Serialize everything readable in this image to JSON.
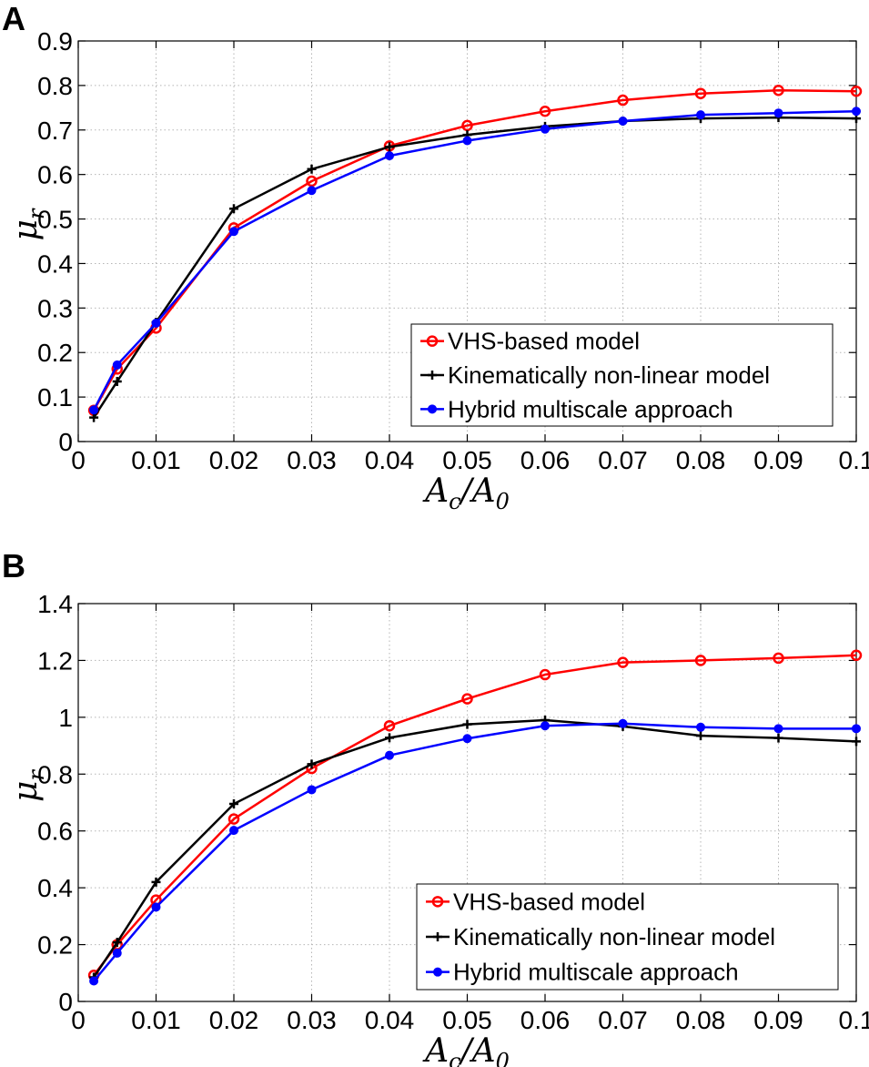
{
  "chart_data": [
    {
      "type": "line",
      "panel_label": "A",
      "x": [
        0.002,
        0.005,
        0.01,
        0.02,
        0.03,
        0.04,
        0.05,
        0.06,
        0.07,
        0.08,
        0.09,
        0.1
      ],
      "xlim": [
        0,
        0.1
      ],
      "ylim": [
        0,
        0.9
      ],
      "xticks": [
        "0",
        "0.01",
        "0.02",
        "0.03",
        "0.04",
        "0.05",
        "0.06",
        "0.07",
        "0.08",
        "0.09",
        "0.1"
      ],
      "yticks": [
        "0",
        "0.1",
        "0.2",
        "0.3",
        "0.4",
        "0.5",
        "0.6",
        "0.7",
        "0.8",
        "0.9"
      ],
      "xlabel": "A_c/A_0",
      "ylabel": "μ_r",
      "grid": true,
      "legend_position": "bottom-right",
      "series": [
        {
          "name": "VHS-based model",
          "color": "#ff0000",
          "marker": "circle",
          "values": [
            0.07,
            0.163,
            0.255,
            0.48,
            0.585,
            0.664,
            0.71,
            0.742,
            0.767,
            0.782,
            0.789,
            0.787
          ]
        },
        {
          "name": "Kinematically non-linear model",
          "color": "#000000",
          "marker": "plus",
          "values": [
            0.054,
            0.135,
            0.268,
            0.523,
            0.612,
            0.662,
            0.689,
            0.708,
            0.72,
            0.726,
            0.728,
            0.726
          ]
        },
        {
          "name": "Hybrid multiscale approach",
          "color": "#0000ff",
          "marker": "dot",
          "values": [
            0.071,
            0.172,
            0.266,
            0.472,
            0.564,
            0.642,
            0.676,
            0.702,
            0.72,
            0.734,
            0.738,
            0.742
          ]
        }
      ]
    },
    {
      "type": "line",
      "panel_label": "B",
      "x": [
        0.002,
        0.005,
        0.01,
        0.02,
        0.03,
        0.04,
        0.05,
        0.06,
        0.07,
        0.08,
        0.09,
        0.1
      ],
      "xlim": [
        0,
        0.1
      ],
      "ylim": [
        0,
        1.4
      ],
      "xticks": [
        "0",
        "0.01",
        "0.02",
        "0.03",
        "0.04",
        "0.05",
        "0.06",
        "0.07",
        "0.08",
        "0.09",
        "0.1"
      ],
      "yticks": [
        "0",
        "0.2",
        "0.4",
        "0.6",
        "0.8",
        "1",
        "1.2",
        "1.4"
      ],
      "xlabel": "A_c/A_0",
      "ylabel": "μ_r",
      "grid": true,
      "legend_position": "bottom-right",
      "series": [
        {
          "name": "VHS-based model",
          "color": "#ff0000",
          "marker": "circle",
          "values": [
            0.092,
            0.2,
            0.357,
            0.642,
            0.82,
            0.97,
            1.065,
            1.15,
            1.193,
            1.2,
            1.208,
            1.218
          ]
        },
        {
          "name": "Kinematically non-linear model",
          "color": "#000000",
          "marker": "plus",
          "values": [
            0.085,
            0.208,
            0.42,
            0.695,
            0.835,
            0.928,
            0.975,
            0.99,
            0.968,
            0.935,
            0.927,
            0.915
          ]
        },
        {
          "name": "Hybrid multiscale approach",
          "color": "#0000ff",
          "marker": "dot",
          "values": [
            0.072,
            0.17,
            0.332,
            0.602,
            0.745,
            0.866,
            0.925,
            0.97,
            0.978,
            0.965,
            0.96,
            0.96
          ]
        }
      ]
    }
  ]
}
